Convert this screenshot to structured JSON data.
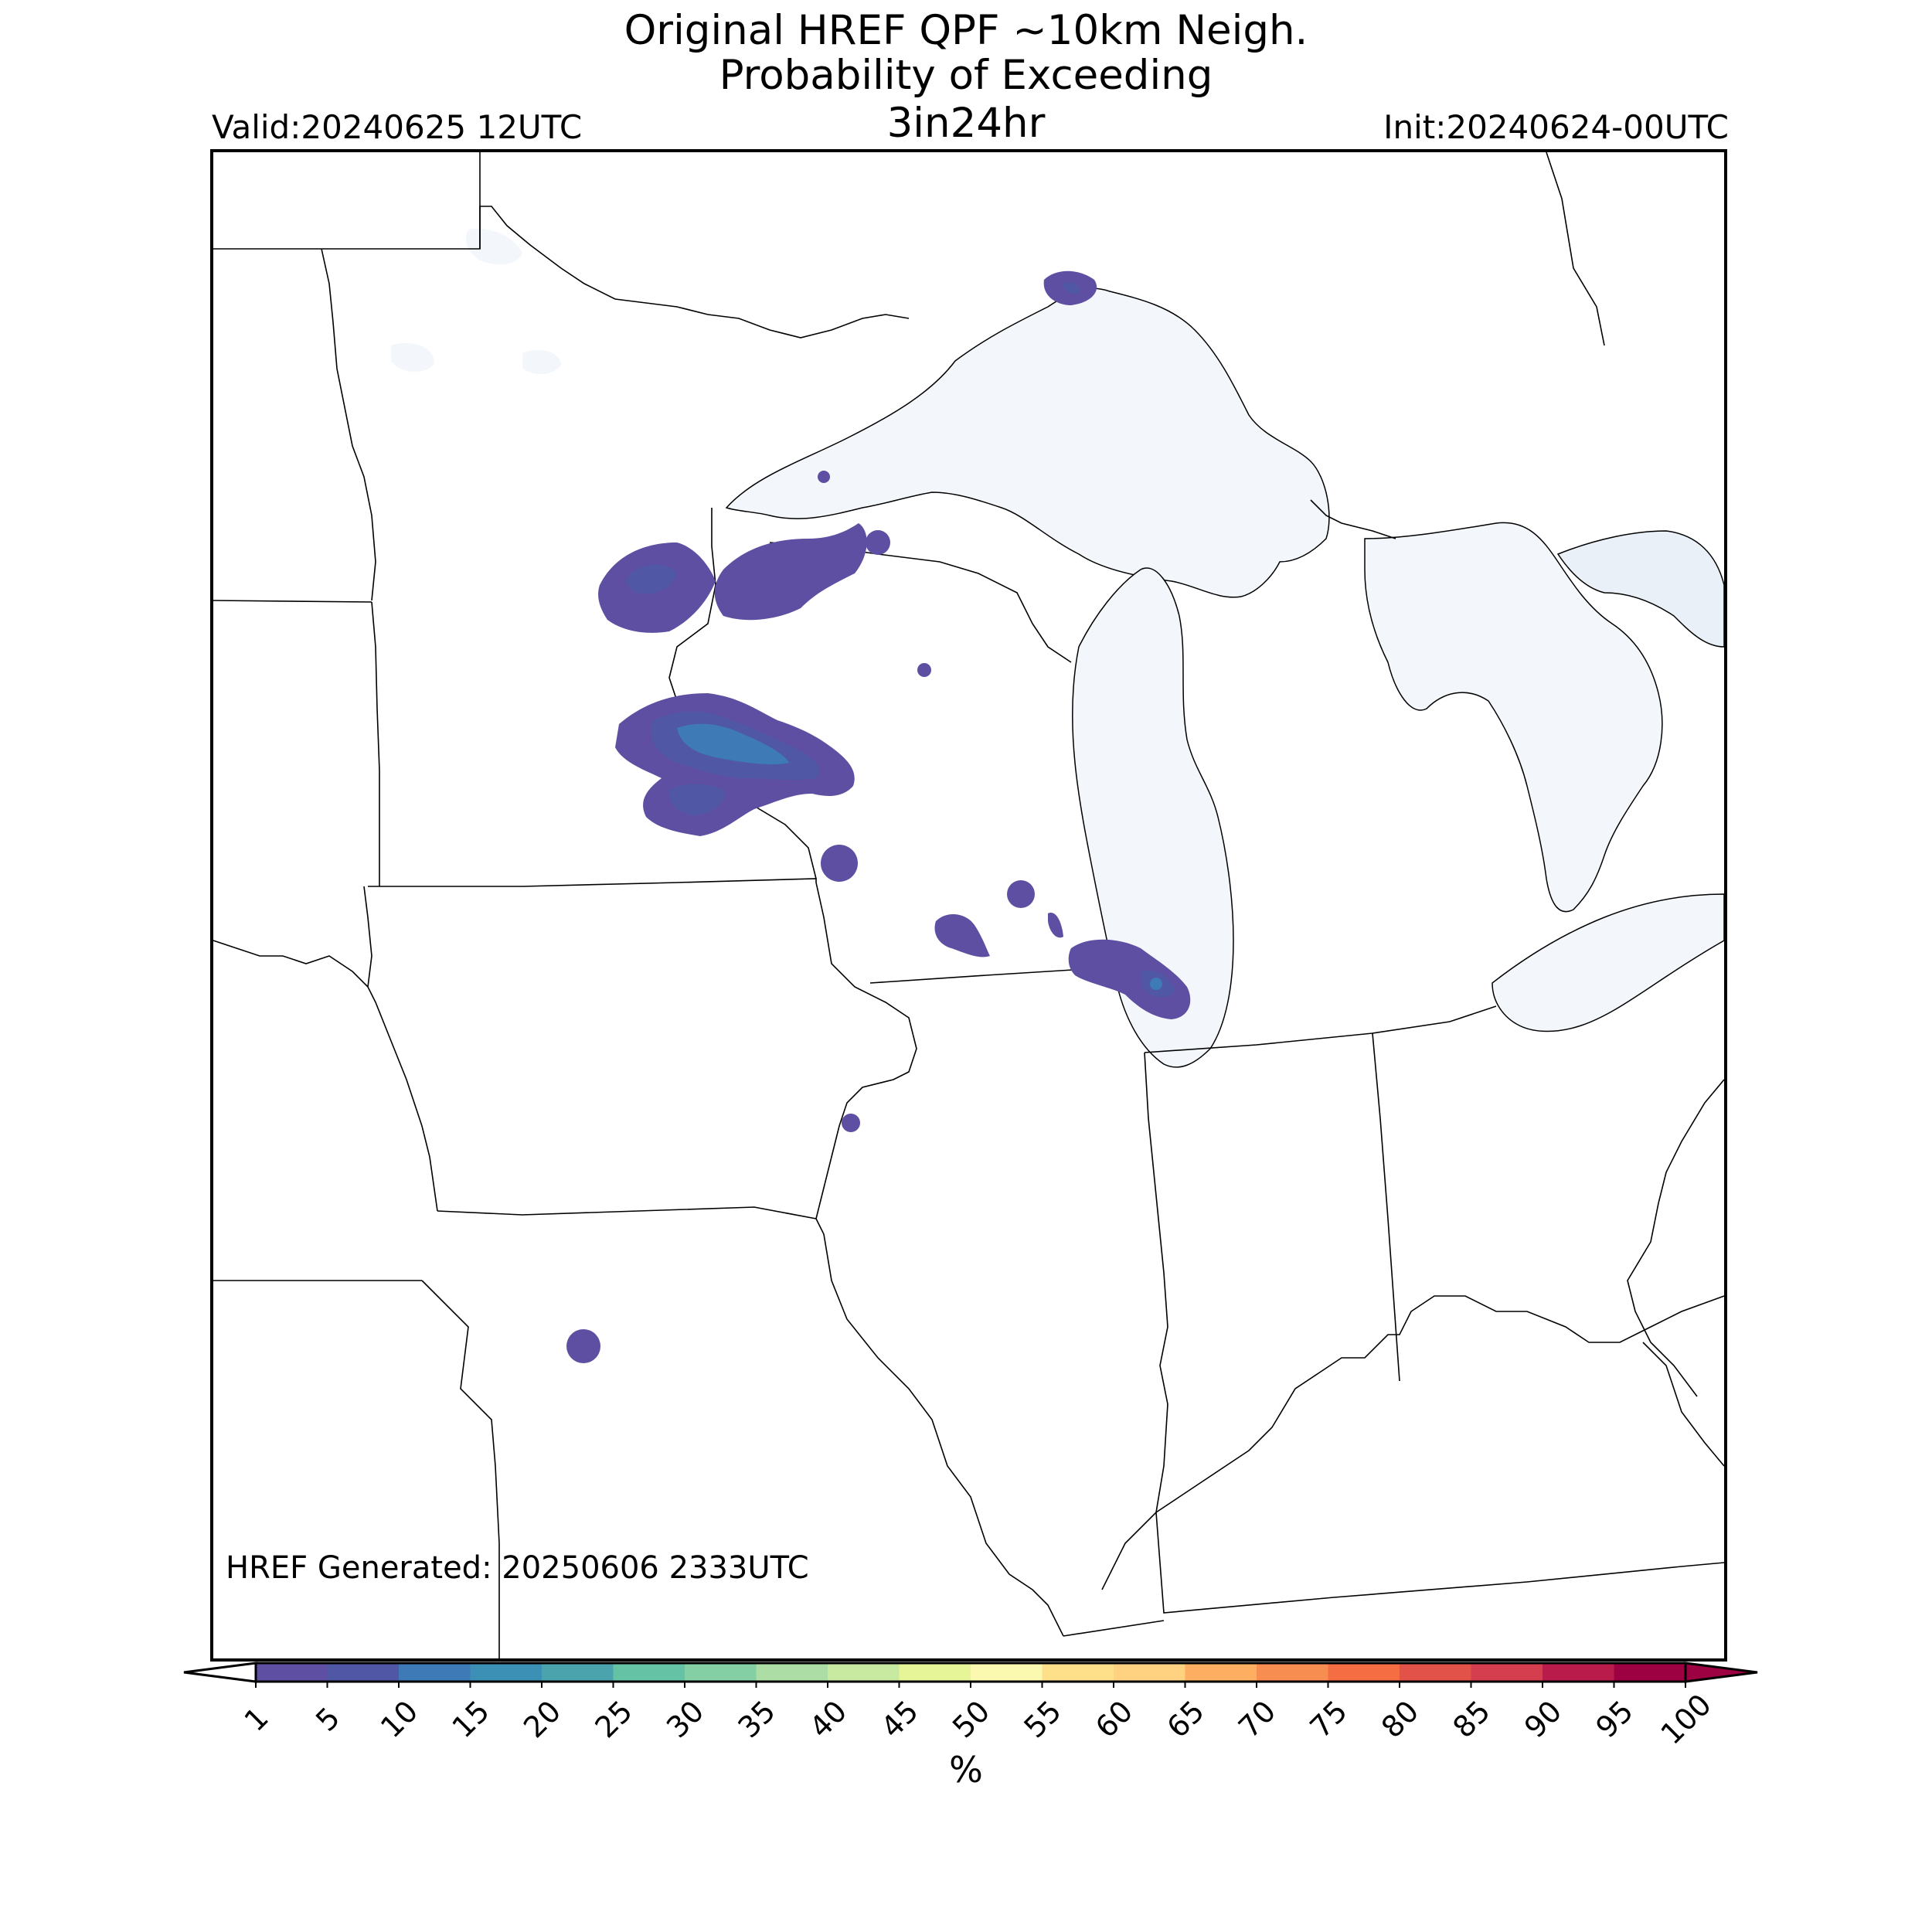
{
  "title": {
    "line1": "Original HREF QPF ~10km Neigh.",
    "line2": "Probability of Exceeding",
    "line3": "3in24hr"
  },
  "valid": "Valid:20240625 12UTC",
  "init": "Init:20240624-00UTC",
  "generated": "HREF Generated: 20250606 2333UTC",
  "colorbar": {
    "label": "%",
    "ticks": [
      "1",
      "5",
      "10",
      "15",
      "20",
      "25",
      "30",
      "35",
      "40",
      "45",
      "50",
      "55",
      "60",
      "65",
      "70",
      "75",
      "80",
      "85",
      "90",
      "95",
      "100"
    ],
    "colors": [
      "#5e4fa2",
      "#5058a6",
      "#3d7ab6",
      "#3c90b5",
      "#4aa3ad",
      "#66c2a5",
      "#84cfa4",
      "#abdda4",
      "#c7e9a0",
      "#e6f598",
      "#fbf8b0",
      "#fee08b",
      "#fed280",
      "#fdae61",
      "#f88d52",
      "#f46d43",
      "#e25249",
      "#d53e4f",
      "#b91c4b",
      "#9e0142"
    ],
    "extend_low_color": "#ffffff",
    "extend_high_color": "#9e0142"
  },
  "map": {
    "water_color": "#f3f6fb",
    "border_color": "#000000"
  }
}
